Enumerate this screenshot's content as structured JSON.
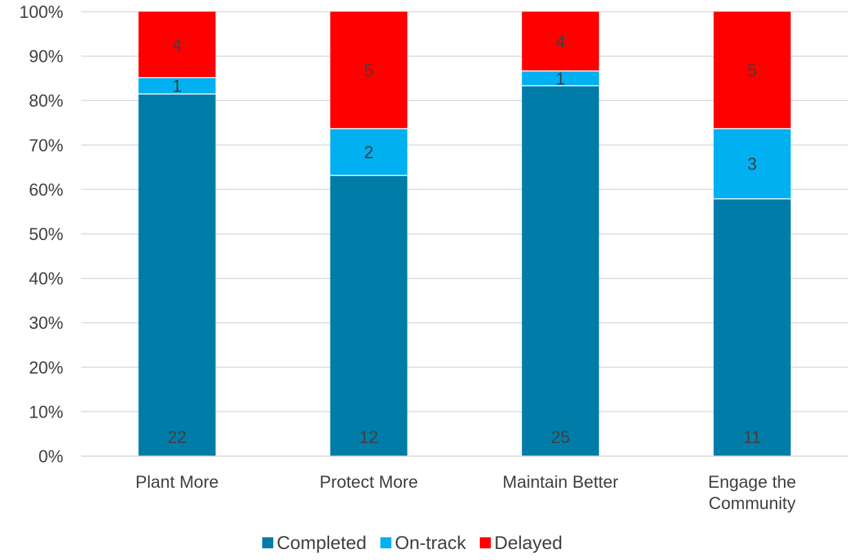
{
  "chart_data": {
    "type": "bar",
    "stacked": true,
    "normalized": true,
    "categories": [
      [
        "Plant More"
      ],
      [
        "Protect More"
      ],
      [
        "Maintain Better"
      ],
      [
        "Engage the",
        "Community"
      ]
    ],
    "series": [
      {
        "name": "Completed",
        "values": [
          22,
          12,
          25,
          11
        ],
        "color": "#007CA9"
      },
      {
        "name": "On-track",
        "values": [
          1,
          2,
          1,
          3
        ],
        "color": "#00B0F0"
      },
      {
        "name": "Delayed",
        "values": [
          4,
          5,
          4,
          5
        ],
        "color": "#FF0000"
      }
    ],
    "yticks": [
      "0%",
      "10%",
      "20%",
      "30%",
      "40%",
      "50%",
      "60%",
      "70%",
      "80%",
      "90%",
      "100%"
    ],
    "ylim": [
      0,
      100
    ],
    "grid": true,
    "legend": "bottom"
  }
}
